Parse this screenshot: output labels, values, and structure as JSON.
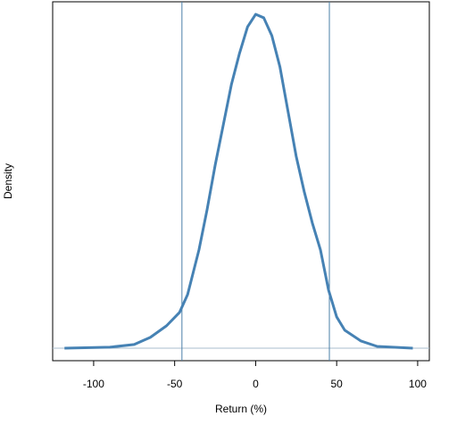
{
  "chart_data": {
    "type": "line",
    "x_label": "Return (%)",
    "y_label": "Density",
    "x": [
      -118,
      -90,
      -75,
      -65,
      -55,
      -47,
      -42,
      -35,
      -30,
      -25,
      -20,
      -15,
      -10,
      -5,
      0,
      5,
      10,
      15,
      20,
      25,
      30,
      35,
      40,
      45,
      50,
      55,
      65,
      75,
      97
    ],
    "values": [
      0,
      5e-05,
      0.00019,
      0.00056,
      0.00116,
      0.00185,
      0.00278,
      0.00509,
      0.00717,
      0.00948,
      0.01156,
      0.01365,
      0.01527,
      0.01665,
      0.0173,
      0.01712,
      0.01619,
      0.01457,
      0.01226,
      0.00995,
      0.0081,
      0.00648,
      0.00509,
      0.00301,
      0.00162,
      0.00093,
      0.00037,
      9e-05,
      0
    ],
    "color": "#4682b4",
    "vlines": [
      -45.5,
      45.5
    ],
    "vline_color": "#4a7fa8",
    "hline": 0,
    "hline_color": "#a9bccc",
    "xlim": [
      -125.3,
      107.2
    ],
    "ylim": [
      -0.00065,
      0.01795
    ],
    "xticks": [
      -100,
      -50,
      0,
      50,
      100
    ]
  }
}
